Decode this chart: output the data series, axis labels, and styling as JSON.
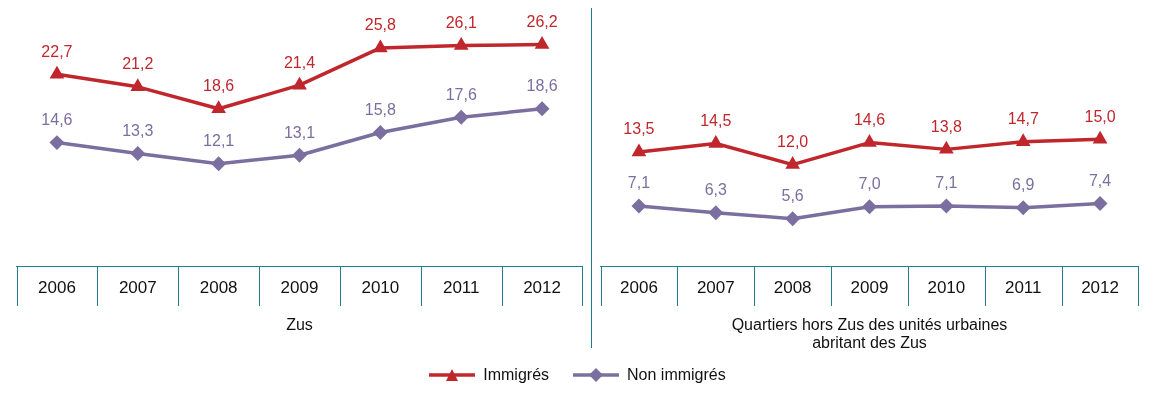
{
  "chart_data": [
    {
      "type": "line",
      "xlabel": "Zus",
      "categories": [
        "2006",
        "2007",
        "2008",
        "2009",
        "2010",
        "2011",
        "2012"
      ],
      "legend": "bottom",
      "grid": false,
      "series": [
        {
          "name": "Immigrés",
          "color": "#c0272d",
          "marker": "triangle",
          "values": [
            22.7,
            21.2,
            18.6,
            21.4,
            25.8,
            26.1,
            26.2
          ],
          "value_labels": [
            "22,7",
            "21,2",
            "18,6",
            "21,4",
            "25,8",
            "26,1",
            "26,2"
          ]
        },
        {
          "name": "Non immigrés",
          "color": "#7b6fa0",
          "marker": "diamond",
          "values": [
            14.6,
            13.3,
            12.1,
            13.1,
            15.8,
            17.6,
            18.6
          ],
          "value_labels": [
            "14,6",
            "13,3",
            "12,1",
            "13,1",
            "15,8",
            "17,6",
            "18,6"
          ]
        }
      ]
    },
    {
      "type": "line",
      "xlabel": "Quartiers hors Zus des unités urbaines abritant des Zus",
      "categories": [
        "2006",
        "2007",
        "2008",
        "2009",
        "2010",
        "2011",
        "2012"
      ],
      "grid": false,
      "series": [
        {
          "color": "#c0272d",
          "marker": "triangle",
          "values": [
            13.5,
            14.5,
            12.0,
            14.6,
            13.8,
            14.7,
            15.0
          ],
          "value_labels": [
            "13,5",
            "14,5",
            "12,0",
            "14,6",
            "13,8",
            "14,7",
            "15,0"
          ]
        },
        {
          "color": "#7b6fa0",
          "marker": "diamond",
          "values": [
            7.1,
            6.3,
            5.6,
            7.0,
            7.1,
            6.9,
            7.4
          ],
          "value_labels": [
            "7,1",
            "6,3",
            "5,6",
            "7,0",
            "7,1",
            "6,9",
            "7,4"
          ]
        }
      ]
    }
  ]
}
